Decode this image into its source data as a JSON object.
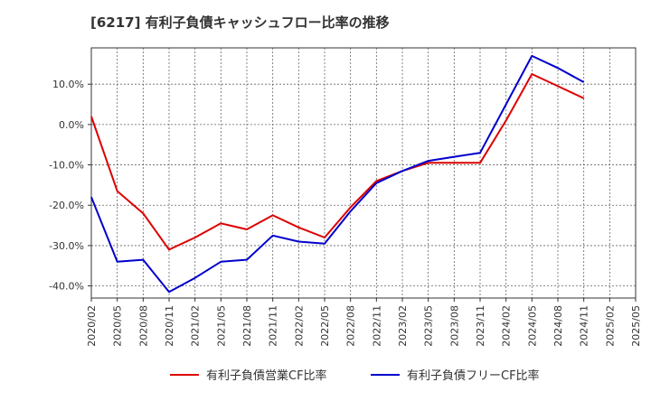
{
  "chart_data": {
    "type": "line",
    "title": "[6217]  有利子負債キャッシュフロー比率の推移",
    "xlabel": "",
    "ylabel": "",
    "categories": [
      "2020/02",
      "2020/05",
      "2020/08",
      "2020/11",
      "2021/02",
      "2021/05",
      "2021/08",
      "2021/11",
      "2022/02",
      "2022/05",
      "2022/08",
      "2022/11",
      "2023/02",
      "2023/05",
      "2023/08",
      "2023/11",
      "2024/02",
      "2024/05",
      "2024/08",
      "2024/11",
      "2025/02",
      "2025/05"
    ],
    "ylim": [
      -43,
      19
    ],
    "yticks": [
      -40,
      -30,
      -20,
      -10,
      0,
      10
    ],
    "ytick_labels": [
      "-40.0%",
      "-30.0%",
      "-20.0%",
      "-10.0%",
      "0.0%",
      "10.0%"
    ],
    "grid": true,
    "legend_position": "bottom",
    "series": [
      {
        "name": "有利子負債営業CF比率",
        "color": "#dd0000",
        "values": [
          2.0,
          -16.5,
          -22.0,
          -31.0,
          -28.0,
          -24.5,
          -26.0,
          -22.5,
          -25.5,
          -28.0,
          -20.5,
          -14.0,
          -11.5,
          -9.5,
          -9.5,
          -9.5,
          1.0,
          12.5,
          9.5,
          6.5,
          null,
          null
        ]
      },
      {
        "name": "有利子負債フリーCF比率",
        "color": "#0000cc",
        "values": [
          -18.0,
          -34.0,
          -33.5,
          -41.5,
          -38.0,
          -34.0,
          -33.5,
          -27.5,
          -29.0,
          -29.5,
          -21.5,
          -14.5,
          -11.5,
          -9.0,
          -8.0,
          -7.0,
          5.0,
          17.0,
          14.0,
          10.5,
          null,
          null
        ]
      }
    ]
  }
}
